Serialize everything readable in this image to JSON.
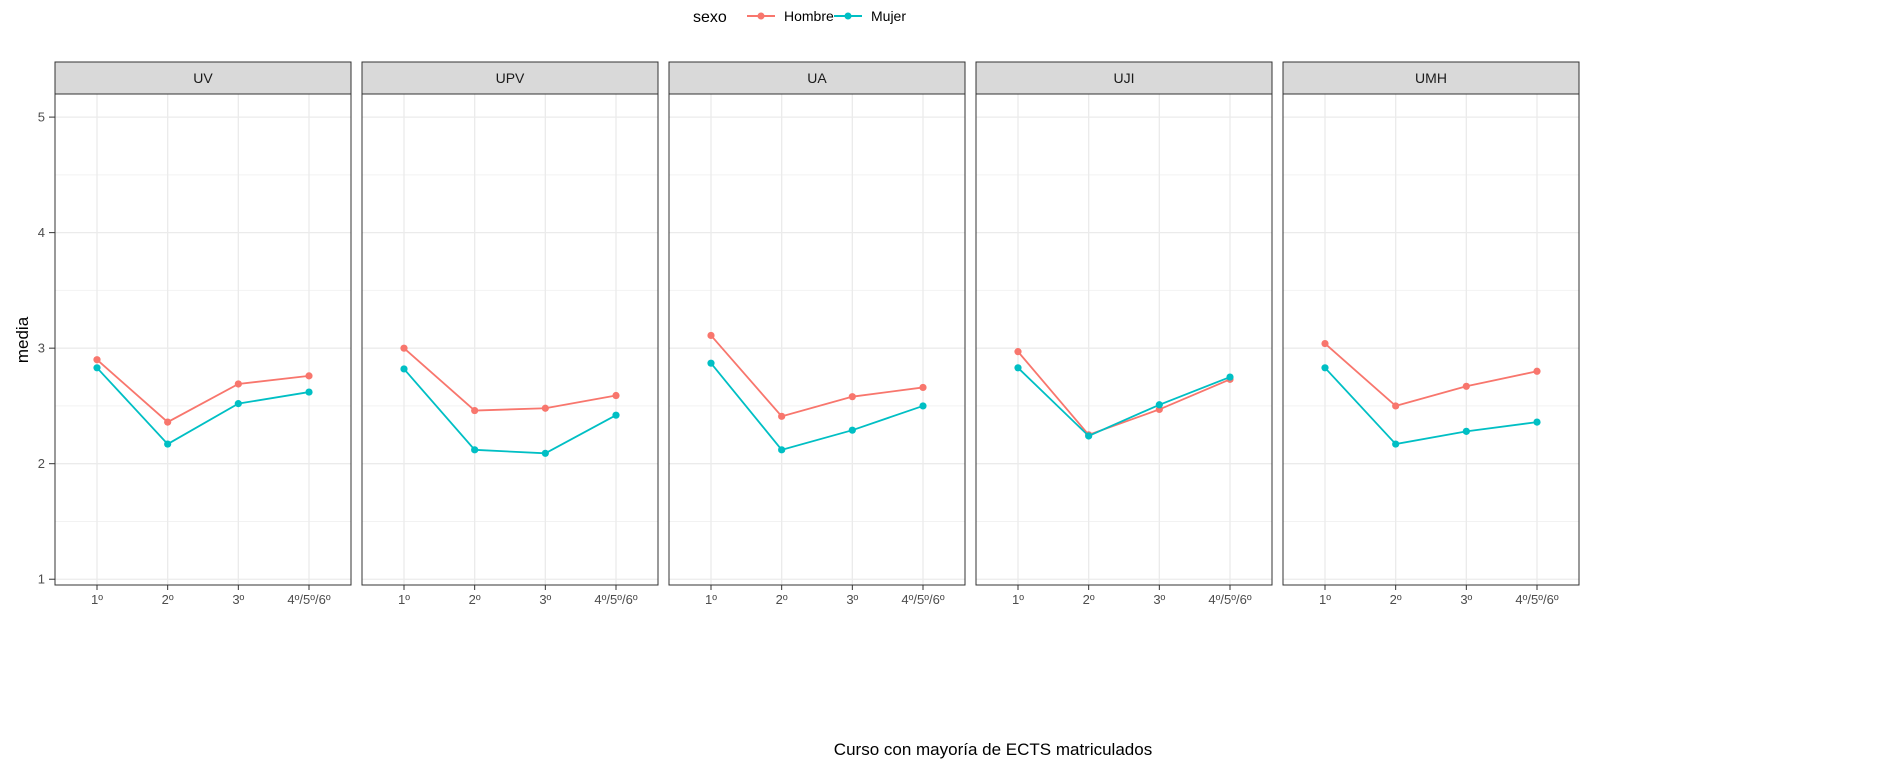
{
  "chart_data": {
    "type": "line",
    "legend": {
      "title": "sexo",
      "position": "top"
    },
    "xlabel": "Curso con mayoría de ECTS matriculados",
    "ylabel": "media",
    "ylim": [
      0.95,
      5.2
    ],
    "yticks": [
      1,
      2,
      3,
      4,
      5
    ],
    "grid": true,
    "categories": [
      "1º",
      "2º",
      "3º",
      "4º/5º/6º"
    ],
    "series_colors": {
      "Hombre": "#F8766D",
      "Mujer": "#00BFC4"
    },
    "panels": [
      {
        "name": "UV",
        "series": [
          {
            "name": "Hombre",
            "values": [
              2.9,
              2.36,
              2.69,
              2.76
            ]
          },
          {
            "name": "Mujer",
            "values": [
              2.83,
              2.17,
              2.52,
              2.62
            ]
          }
        ]
      },
      {
        "name": "UPV",
        "series": [
          {
            "name": "Hombre",
            "values": [
              3.0,
              2.46,
              2.48,
              2.59
            ]
          },
          {
            "name": "Mujer",
            "values": [
              2.82,
              2.12,
              2.09,
              2.42
            ]
          }
        ]
      },
      {
        "name": "UA",
        "series": [
          {
            "name": "Hombre",
            "values": [
              3.11,
              2.41,
              2.58,
              2.66
            ]
          },
          {
            "name": "Mujer",
            "values": [
              2.87,
              2.12,
              2.29,
              2.5
            ]
          }
        ]
      },
      {
        "name": "UJI",
        "series": [
          {
            "name": "Hombre",
            "values": [
              2.97,
              2.25,
              2.47,
              2.73
            ]
          },
          {
            "name": "Mujer",
            "values": [
              2.83,
              2.24,
              2.51,
              2.75
            ]
          }
        ]
      },
      {
        "name": "UMH",
        "series": [
          {
            "name": "Hombre",
            "values": [
              3.04,
              2.5,
              2.67,
              2.8
            ]
          },
          {
            "name": "Mujer",
            "values": [
              2.83,
              2.17,
              2.28,
              2.36
            ]
          }
        ]
      }
    ]
  }
}
